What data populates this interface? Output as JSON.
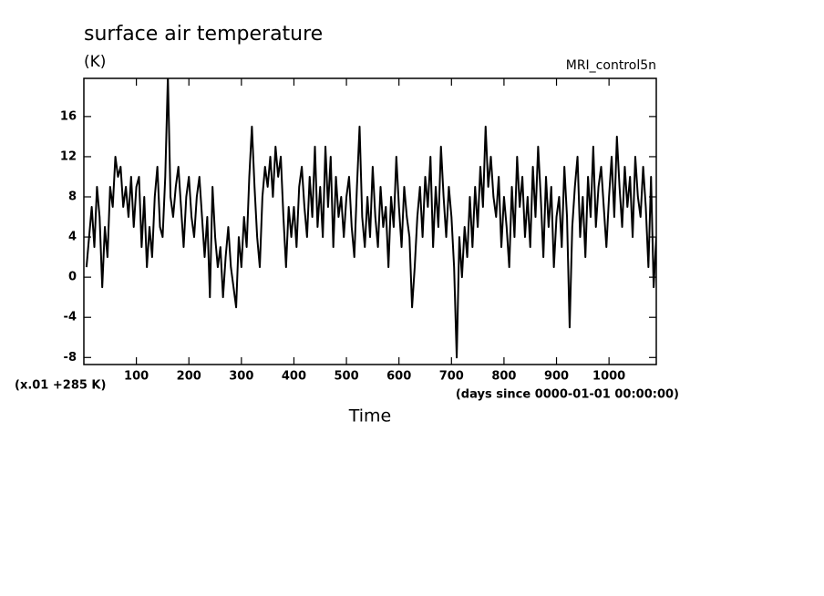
{
  "chart_data": {
    "type": "line",
    "title": "surface air temperature",
    "unit_label": "(K)",
    "subtitle": "MRI_control5n",
    "y_offset_label": "(x.01 +285 K)",
    "x_units_label": "(days since 0000-01-01 00:00:00)",
    "x_label": "Time",
    "color": "#000000",
    "xlim": [
      0,
      1090
    ],
    "ylim": [
      -8.7,
      19.8
    ],
    "xticks": [
      100,
      200,
      300,
      400,
      500,
      600,
      700,
      800,
      900,
      1000
    ],
    "yticks": [
      -8,
      -4,
      0,
      4,
      8,
      12,
      16
    ],
    "x": [
      5,
      10,
      15,
      20,
      25,
      30,
      35,
      40,
      45,
      50,
      55,
      60,
      65,
      70,
      75,
      80,
      85,
      90,
      95,
      100,
      105,
      110,
      115,
      120,
      125,
      130,
      135,
      140,
      145,
      150,
      155,
      160,
      165,
      170,
      175,
      180,
      185,
      190,
      195,
      200,
      205,
      210,
      215,
      220,
      225,
      230,
      235,
      240,
      245,
      250,
      255,
      260,
      265,
      270,
      275,
      280,
      285,
      290,
      295,
      300,
      305,
      310,
      315,
      320,
      325,
      330,
      335,
      340,
      345,
      350,
      355,
      360,
      365,
      370,
      375,
      380,
      385,
      390,
      395,
      400,
      405,
      410,
      415,
      420,
      425,
      430,
      435,
      440,
      445,
      450,
      455,
      460,
      465,
      470,
      475,
      480,
      485,
      490,
      495,
      500,
      505,
      510,
      515,
      520,
      525,
      530,
      535,
      540,
      545,
      550,
      555,
      560,
      565,
      570,
      575,
      580,
      585,
      590,
      595,
      600,
      605,
      610,
      615,
      620,
      625,
      630,
      635,
      640,
      645,
      650,
      655,
      660,
      665,
      670,
      675,
      680,
      685,
      690,
      695,
      700,
      705,
      710,
      715,
      720,
      725,
      730,
      735,
      740,
      745,
      750,
      755,
      760,
      765,
      770,
      775,
      780,
      785,
      790,
      795,
      800,
      805,
      810,
      815,
      820,
      825,
      830,
      835,
      840,
      845,
      850,
      855,
      860,
      865,
      870,
      875,
      880,
      885,
      890,
      895,
      900,
      905,
      910,
      915,
      920,
      925,
      930,
      935,
      940,
      945,
      950,
      955,
      960,
      965,
      970,
      975,
      980,
      985,
      990,
      995,
      1000,
      1005,
      1010,
      1015,
      1020,
      1025,
      1030,
      1035,
      1040,
      1045,
      1050,
      1055,
      1060,
      1065,
      1070,
      1075,
      1080,
      1085,
      1090
    ],
    "values": [
      1,
      4,
      7,
      3,
      9,
      6,
      -1,
      5,
      2,
      9,
      7,
      12,
      10,
      11,
      7,
      9,
      6,
      10,
      5,
      9,
      10,
      3,
      8,
      1,
      5,
      2,
      8,
      11,
      5,
      4,
      10,
      20,
      8,
      6,
      9,
      11,
      7,
      3,
      8,
      10,
      6,
      4,
      8,
      10,
      6,
      2,
      6,
      -2,
      9,
      4,
      1,
      3,
      -2,
      2,
      5,
      1,
      -1,
      -3,
      4,
      1,
      6,
      3,
      10,
      15,
      9,
      4,
      1,
      8,
      11,
      9,
      12,
      8,
      13,
      10,
      12,
      6,
      1,
      7,
      4,
      7,
      3,
      9,
      11,
      7,
      4,
      10,
      6,
      13,
      5,
      9,
      4,
      13,
      7,
      12,
      3,
      10,
      6,
      8,
      4,
      8,
      10,
      5,
      2,
      9,
      15,
      6,
      3,
      8,
      4,
      11,
      6,
      3,
      9,
      5,
      7,
      1,
      8,
      5,
      12,
      7,
      3,
      9,
      6,
      4,
      -3,
      1,
      6,
      9,
      4,
      10,
      7,
      12,
      3,
      9,
      5,
      13,
      8,
      4,
      9,
      6,
      1,
      -8,
      4,
      0,
      5,
      2,
      8,
      3,
      9,
      5,
      11,
      7,
      15,
      9,
      12,
      8,
      6,
      10,
      3,
      8,
      5,
      1,
      9,
      4,
      12,
      7,
      10,
      4,
      8,
      3,
      11,
      6,
      13,
      8,
      2,
      10,
      5,
      9,
      1,
      6,
      8,
      3,
      11,
      6,
      -5,
      5,
      9,
      12,
      4,
      8,
      2,
      10,
      6,
      13,
      5,
      9,
      11,
      7,
      3,
      8,
      12,
      6,
      14,
      9,
      5,
      11,
      7,
      10,
      4,
      12,
      8,
      6,
      11,
      7,
      1,
      10,
      -1,
      4
    ]
  }
}
